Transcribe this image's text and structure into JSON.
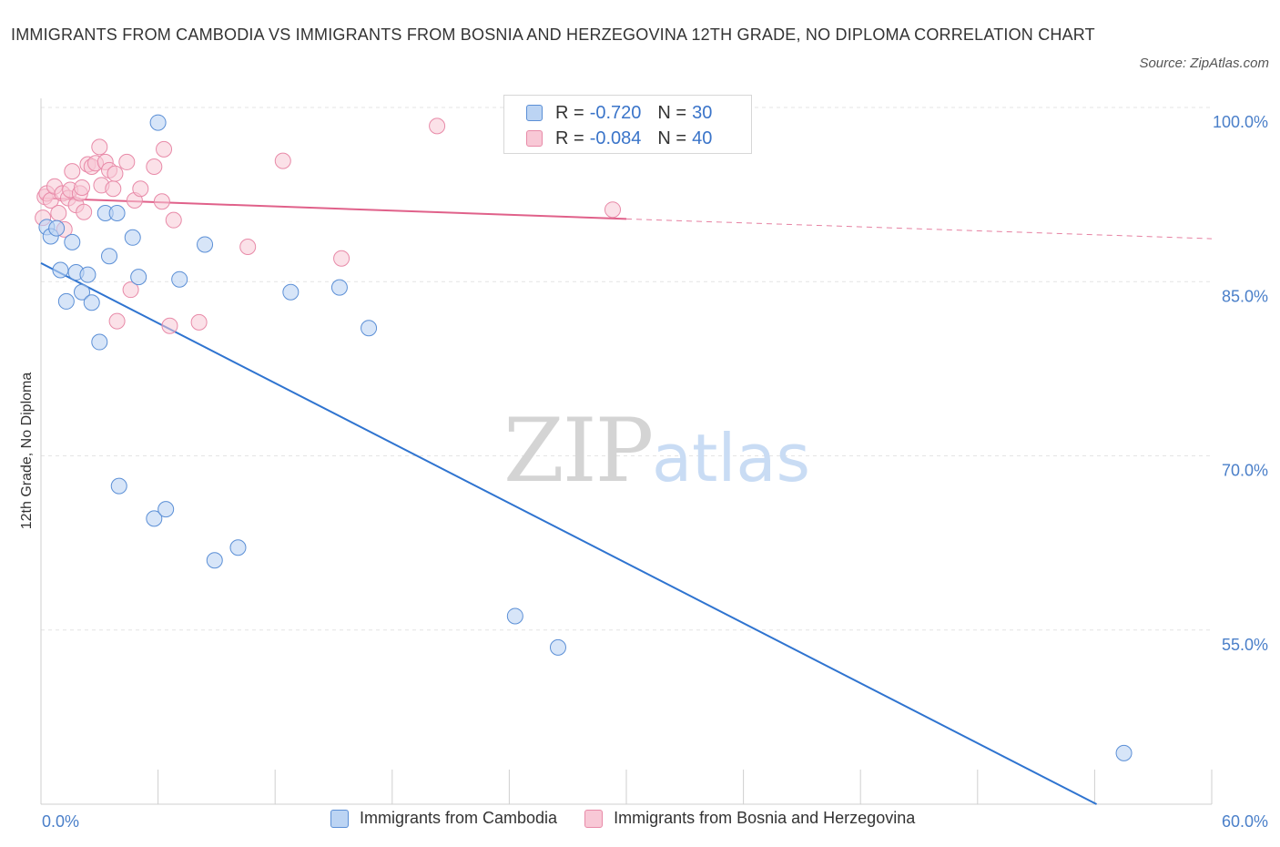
{
  "title": "IMMIGRANTS FROM CAMBODIA VS IMMIGRANTS FROM BOSNIA AND HERZEGOVINA 12TH GRADE, NO DIPLOMA CORRELATION CHART",
  "source": "Source: ZipAtlas.com",
  "watermark": {
    "zip": "ZIP",
    "atlas": "atlas"
  },
  "legend": {
    "r_label": "R =",
    "n_label": "N =",
    "rows": [
      {
        "r": "-0.720",
        "n": "30"
      },
      {
        "r": "-0.084",
        "n": "40"
      }
    ]
  },
  "colors": {
    "cambodia_fill": "#bcd4f3",
    "cambodia_stroke": "#5b8fd6",
    "cambodia_line": "#2f74d0",
    "bosnia_fill": "#f8c8d6",
    "bosnia_stroke": "#e88aa8",
    "bosnia_line": "#e0618a",
    "tick_text": "#4a7fc9",
    "grid": "#e4e4e4"
  },
  "chart_data": {
    "type": "scatter",
    "title": "IMMIGRANTS FROM CAMBODIA VS IMMIGRANTS FROM BOSNIA AND HERZEGOVINA 12TH GRADE, NO DIPLOMA CORRELATION CHART",
    "xlabel": "",
    "ylabel": "12th Grade, No Diploma",
    "xlim": [
      0,
      60
    ],
    "ylim": [
      40,
      100
    ],
    "x_tick_labels": [
      "0.0%",
      "60.0%"
    ],
    "y_ticks": [
      {
        "value": 55,
        "label": "55.0%"
      },
      {
        "value": 70,
        "label": "70.0%"
      },
      {
        "value": 85,
        "label": "85.0%"
      },
      {
        "value": 100,
        "label": "100.0%"
      }
    ],
    "grid": true,
    "legend_position": "top-center",
    "series": [
      {
        "name": "Immigrants from Cambodia",
        "r": -0.72,
        "n": 30,
        "points": [
          [
            0.3,
            89.7
          ],
          [
            0.5,
            88.9
          ],
          [
            0.8,
            89.6
          ],
          [
            1.0,
            86.0
          ],
          [
            1.3,
            83.3
          ],
          [
            1.6,
            88.4
          ],
          [
            1.8,
            85.8
          ],
          [
            2.1,
            84.1
          ],
          [
            2.4,
            85.6
          ],
          [
            2.6,
            83.2
          ],
          [
            3.0,
            79.8
          ],
          [
            3.3,
            90.9
          ],
          [
            3.5,
            87.2
          ],
          [
            3.9,
            90.9
          ],
          [
            4.0,
            67.4
          ],
          [
            4.7,
            88.8
          ],
          [
            5.0,
            85.4
          ],
          [
            5.8,
            64.6
          ],
          [
            6.0,
            98.7
          ],
          [
            6.4,
            65.4
          ],
          [
            7.1,
            85.2
          ],
          [
            8.4,
            88.2
          ],
          [
            8.9,
            61.0
          ],
          [
            10.1,
            62.1
          ],
          [
            12.8,
            84.1
          ],
          [
            15.3,
            84.5
          ],
          [
            16.8,
            81.0
          ],
          [
            24.3,
            56.2
          ],
          [
            26.5,
            53.5
          ],
          [
            55.5,
            44.4
          ]
        ]
      },
      {
        "name": "Immigrants from Bosnia and Herzegovina",
        "r": -0.084,
        "n": 40,
        "points": [
          [
            0.1,
            90.5
          ],
          [
            0.2,
            92.3
          ],
          [
            0.3,
            92.6
          ],
          [
            0.5,
            92.0
          ],
          [
            0.7,
            93.2
          ],
          [
            0.9,
            90.9
          ],
          [
            1.1,
            92.6
          ],
          [
            1.2,
            89.5
          ],
          [
            1.4,
            92.2
          ],
          [
            1.5,
            92.9
          ],
          [
            1.6,
            94.5
          ],
          [
            1.8,
            91.6
          ],
          [
            2.0,
            92.6
          ],
          [
            2.1,
            93.1
          ],
          [
            2.2,
            91.0
          ],
          [
            2.4,
            95.1
          ],
          [
            2.6,
            94.9
          ],
          [
            2.8,
            95.2
          ],
          [
            3.0,
            96.6
          ],
          [
            3.1,
            93.3
          ],
          [
            3.3,
            95.3
          ],
          [
            3.5,
            94.6
          ],
          [
            3.7,
            93.0
          ],
          [
            3.8,
            94.3
          ],
          [
            3.9,
            81.6
          ],
          [
            4.4,
            95.3
          ],
          [
            4.6,
            84.3
          ],
          [
            4.8,
            92.0
          ],
          [
            5.1,
            93.0
          ],
          [
            5.8,
            94.9
          ],
          [
            6.2,
            91.9
          ],
          [
            6.3,
            96.4
          ],
          [
            6.6,
            81.2
          ],
          [
            6.8,
            90.3
          ],
          [
            8.1,
            81.5
          ],
          [
            10.6,
            88.0
          ],
          [
            12.4,
            95.4
          ],
          [
            15.4,
            87.0
          ],
          [
            20.3,
            98.4
          ],
          [
            29.3,
            91.2
          ]
        ]
      }
    ],
    "trendlines": [
      {
        "series": "Immigrants from Cambodia",
        "solid": [
          [
            0,
            86.6
          ],
          [
            54.1,
            40.0
          ]
        ]
      },
      {
        "series": "Immigrants from Bosnia and Herzegovina",
        "solid": [
          [
            0,
            92.2
          ],
          [
            30.0,
            90.4
          ]
        ],
        "dashed": [
          [
            30.0,
            90.4
          ],
          [
            60.0,
            88.7
          ]
        ]
      }
    ]
  }
}
